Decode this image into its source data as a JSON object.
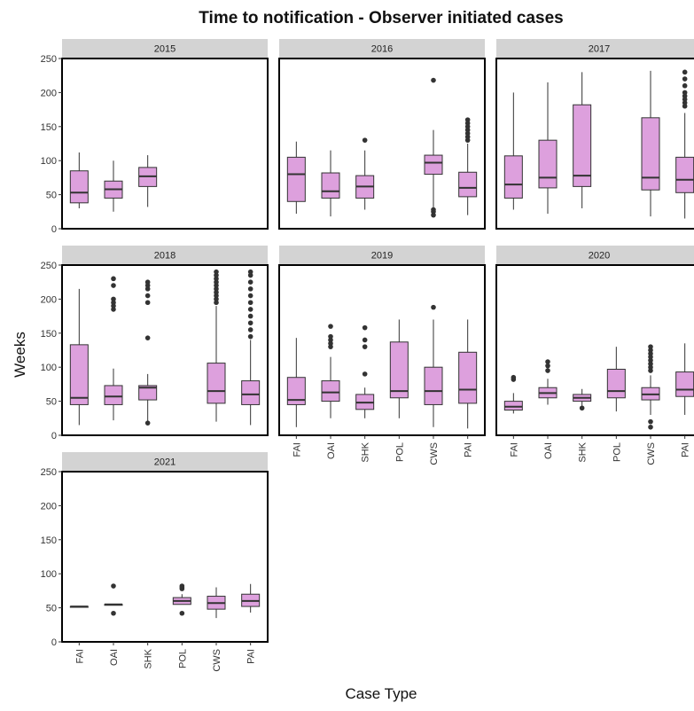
{
  "chart_data": {
    "type": "boxplot",
    "title": "Time to notification - Observer initiated cases",
    "xlabel": "Case Type",
    "ylabel": "Weeks",
    "ylim": [
      0,
      250
    ],
    "yticks": [
      0,
      50,
      100,
      150,
      200,
      250
    ],
    "categories": [
      "FAI",
      "OAI",
      "SHK",
      "POL",
      "CWS",
      "PAI"
    ],
    "grid": false,
    "colors": {
      "box_fill": "#dda0dd",
      "strip_bg": "#d3d3d3",
      "outlier": "#333333"
    },
    "panels": [
      {
        "facet": "2015",
        "boxes": [
          {
            "category": "FAI",
            "whislo": 30,
            "q1": 38,
            "med": 53,
            "q3": 85,
            "whishi": 112,
            "fliers": []
          },
          {
            "category": "OAI",
            "whislo": 25,
            "q1": 45,
            "med": 58,
            "q3": 70,
            "whishi": 100,
            "fliers": []
          },
          {
            "category": "SHK",
            "whislo": 32,
            "q1": 62,
            "med": 77,
            "q3": 90,
            "whishi": 108,
            "fliers": []
          }
        ]
      },
      {
        "facet": "2016",
        "boxes": [
          {
            "category": "FAI",
            "whislo": 22,
            "q1": 40,
            "med": 80,
            "q3": 105,
            "whishi": 128,
            "fliers": []
          },
          {
            "category": "OAI",
            "whislo": 18,
            "q1": 45,
            "med": 55,
            "q3": 82,
            "whishi": 115,
            "fliers": []
          },
          {
            "category": "SHK",
            "whislo": 28,
            "q1": 45,
            "med": 62,
            "q3": 78,
            "whishi": 115,
            "fliers": [
              130
            ]
          },
          {
            "category": "CWS",
            "whislo": 30,
            "q1": 80,
            "med": 97,
            "q3": 108,
            "whishi": 145,
            "fliers": [
              20,
              25,
              28,
              218
            ]
          },
          {
            "category": "PAI",
            "whislo": 20,
            "q1": 47,
            "med": 60,
            "q3": 83,
            "whishi": 125,
            "fliers": [
              130,
              135,
              140,
              145,
              150,
              155,
              160
            ]
          }
        ]
      },
      {
        "facet": "2017",
        "boxes": [
          {
            "category": "FAI",
            "whislo": 28,
            "q1": 45,
            "med": 65,
            "q3": 107,
            "whishi": 200,
            "fliers": []
          },
          {
            "category": "OAI",
            "whislo": 22,
            "q1": 60,
            "med": 75,
            "q3": 130,
            "whishi": 215,
            "fliers": []
          },
          {
            "category": "SHK",
            "whislo": 30,
            "q1": 62,
            "med": 78,
            "q3": 182,
            "whishi": 230,
            "fliers": []
          },
          {
            "category": "CWS",
            "whislo": 18,
            "q1": 57,
            "med": 75,
            "q3": 163,
            "whishi": 232,
            "fliers": []
          },
          {
            "category": "PAI",
            "whislo": 15,
            "q1": 53,
            "med": 72,
            "q3": 105,
            "whishi": 170,
            "fliers": [
              180,
              185,
              190,
              195,
              200,
              210,
              220,
              230
            ]
          }
        ]
      },
      {
        "facet": "2018",
        "boxes": [
          {
            "category": "FAI",
            "whislo": 15,
            "q1": 45,
            "med": 55,
            "q3": 133,
            "whishi": 215,
            "fliers": []
          },
          {
            "category": "OAI",
            "whislo": 22,
            "q1": 45,
            "med": 57,
            "q3": 73,
            "whishi": 98,
            "fliers": [
              185,
              190,
              195,
              200,
              220,
              230
            ]
          },
          {
            "category": "SHK",
            "whislo": 18,
            "q1": 52,
            "med": 70,
            "q3": 73,
            "whishi": 90,
            "fliers": [
              18,
              143,
              195,
              205,
              215,
              220,
              225
            ]
          },
          {
            "category": "CWS",
            "whislo": 20,
            "q1": 47,
            "med": 65,
            "q3": 106,
            "whishi": 190,
            "fliers": [
              195,
              200,
              205,
              210,
              215,
              220,
              225,
              230,
              235,
              240
            ]
          },
          {
            "category": "PAI",
            "whislo": 15,
            "q1": 45,
            "med": 60,
            "q3": 80,
            "whishi": 140,
            "fliers": [
              145,
              155,
              165,
              175,
              185,
              195,
              205,
              215,
              225,
              235,
              240
            ]
          }
        ]
      },
      {
        "facet": "2019",
        "boxes": [
          {
            "category": "FAI",
            "whislo": 12,
            "q1": 45,
            "med": 52,
            "q3": 85,
            "whishi": 143,
            "fliers": []
          },
          {
            "category": "OAI",
            "whislo": 25,
            "q1": 50,
            "med": 63,
            "q3": 80,
            "whishi": 115,
            "fliers": [
              130,
              135,
              140,
              145,
              160
            ]
          },
          {
            "category": "SHK",
            "whislo": 25,
            "q1": 38,
            "med": 48,
            "q3": 60,
            "whishi": 70,
            "fliers": [
              90,
              130,
              140,
              158
            ]
          },
          {
            "category": "POL",
            "whislo": 25,
            "q1": 55,
            "med": 65,
            "q3": 137,
            "whishi": 170,
            "fliers": []
          },
          {
            "category": "CWS",
            "whislo": 12,
            "q1": 45,
            "med": 65,
            "q3": 100,
            "whishi": 170,
            "fliers": [
              188
            ]
          },
          {
            "category": "PAI",
            "whislo": 10,
            "q1": 47,
            "med": 67,
            "q3": 122,
            "whishi": 170,
            "fliers": []
          }
        ]
      },
      {
        "facet": "2020",
        "boxes": [
          {
            "category": "FAI",
            "whislo": 32,
            "q1": 37,
            "med": 42,
            "q3": 50,
            "whishi": 62,
            "fliers": [
              82,
              85
            ]
          },
          {
            "category": "OAI",
            "whislo": 45,
            "q1": 55,
            "med": 62,
            "q3": 70,
            "whishi": 83,
            "fliers": [
              95,
              102,
              108
            ]
          },
          {
            "category": "SHK",
            "whislo": 40,
            "q1": 50,
            "med": 55,
            "q3": 60,
            "whishi": 68,
            "fliers": [
              40
            ]
          },
          {
            "category": "POL",
            "whislo": 35,
            "q1": 55,
            "med": 65,
            "q3": 97,
            "whishi": 130,
            "fliers": []
          },
          {
            "category": "CWS",
            "whislo": 30,
            "q1": 52,
            "med": 60,
            "q3": 70,
            "whishi": 88,
            "fliers": [
              12,
              20,
              95,
              100,
              105,
              110,
              115,
              120,
              125,
              130
            ]
          },
          {
            "category": "PAI",
            "whislo": 30,
            "q1": 57,
            "med": 67,
            "q3": 93,
            "whishi": 135,
            "fliers": []
          }
        ]
      },
      {
        "facet": "2021",
        "boxes": [
          {
            "category": "FAI",
            "whislo": 52,
            "q1": 52,
            "med": 52,
            "q3": 52,
            "whishi": 52,
            "fliers": []
          },
          {
            "category": "OAI",
            "whislo": 55,
            "q1": 55,
            "med": 55,
            "q3": 55,
            "whishi": 55,
            "fliers": [
              42,
              82
            ]
          },
          {
            "category": "POL",
            "whislo": 55,
            "q1": 55,
            "med": 60,
            "q3": 65,
            "whishi": 70,
            "fliers": [
              42,
              78,
              80,
              82
            ]
          },
          {
            "category": "CWS",
            "whislo": 35,
            "q1": 48,
            "med": 57,
            "q3": 67,
            "whishi": 80,
            "fliers": []
          },
          {
            "category": "PAI",
            "whislo": 43,
            "q1": 52,
            "med": 60,
            "q3": 70,
            "whishi": 85,
            "fliers": []
          }
        ]
      }
    ]
  }
}
